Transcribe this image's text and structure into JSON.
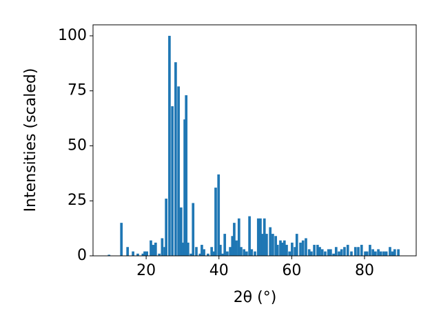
{
  "chart_data": {
    "type": "bar",
    "xlabel": "2θ (°)",
    "ylabel": "Intensities (scaled)",
    "x": [
      9.8,
      13.2,
      14.9,
      16.4,
      17.7,
      19.1,
      19.6,
      20.2,
      21.3,
      21.9,
      22.6,
      23.6,
      24.4,
      25.1,
      25.5,
      26.4,
      27.2,
      28.1,
      28.9,
      29.6,
      30.0,
      30.6,
      31.0,
      31.5,
      32.3,
      32.9,
      33.8,
      34.8,
      35.3,
      35.9,
      37.0,
      38.0,
      38.5,
      39.1,
      39.9,
      40.4,
      41.0,
      41.6,
      42.3,
      43.1,
      43.7,
      44.2,
      44.8,
      45.5,
      46.1,
      46.9,
      47.6,
      48.4,
      49.0,
      49.9,
      50.8,
      51.4,
      52.0,
      52.5,
      53.1,
      54.1,
      54.8,
      55.6,
      56.1,
      56.9,
      57.5,
      58.0,
      58.6,
      59.4,
      60.1,
      60.9,
      61.4,
      62.4,
      63.1,
      63.9,
      64.8,
      65.4,
      66.2,
      67.1,
      67.7,
      68.4,
      69.2,
      70.1,
      70.7,
      71.5,
      72.2,
      73.0,
      73.7,
      74.5,
      75.4,
      76.4,
      77.5,
      78.3,
      79.2,
      80.2,
      80.7,
      81.5,
      82.3,
      83.0,
      83.8,
      84.5,
      85.3,
      86.0,
      87.0,
      87.7,
      88.3,
      89.3
    ],
    "values": [
      0.5,
      15,
      4,
      2,
      1,
      1,
      2,
      2,
      7,
      5,
      6,
      1,
      8,
      4,
      26,
      100,
      68,
      88,
      77,
      22,
      6,
      62,
      73,
      6,
      1,
      24,
      4,
      1,
      5,
      3,
      1,
      4,
      2,
      31,
      37,
      5,
      1,
      10,
      2,
      4,
      9,
      15,
      7,
      17,
      4,
      3,
      2,
      18,
      3,
      2,
      17,
      17,
      10,
      17,
      10,
      13,
      10,
      9,
      5,
      7,
      6,
      7,
      5,
      2,
      6,
      4,
      10,
      6,
      7,
      8,
      3,
      2,
      5,
      5,
      4,
      3,
      2,
      3,
      3,
      1,
      4,
      2,
      3,
      4,
      5,
      2,
      4,
      4,
      5,
      2,
      2,
      5,
      3,
      2,
      3,
      2,
      2,
      2,
      4,
      2,
      3,
      3
    ],
    "color": "#1f77b4",
    "xlim": [
      5.4,
      94.2
    ],
    "ylim": [
      0,
      105
    ],
    "xticks": [
      20,
      40,
      60,
      80
    ],
    "yticks": [
      0,
      25,
      50,
      75,
      100
    ]
  }
}
